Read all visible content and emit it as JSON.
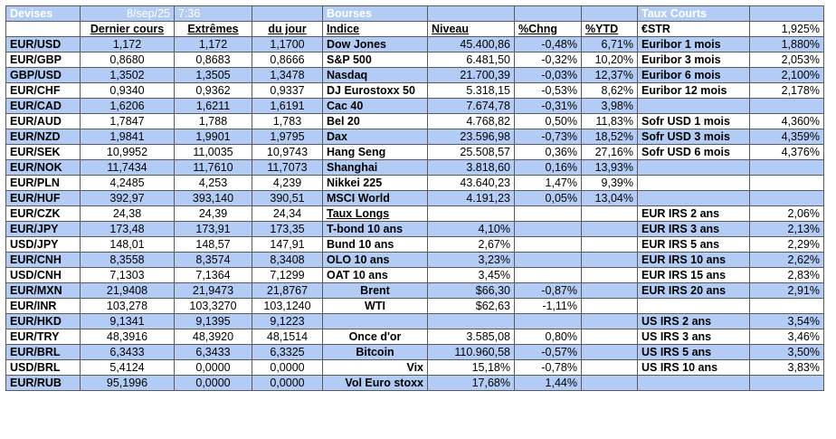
{
  "header": {
    "devises": "Devises",
    "date": "8/sep/25",
    "time": "7:36",
    "bourses": "Bourses",
    "taux_courts": "Taux Courts"
  },
  "columns": {
    "dernier": "Dernier cours",
    "extremes": "Extrêmes",
    "du_jour": "du jour",
    "indice": "Indice",
    "niveau": "Niveau",
    "chng": "%Chng",
    "ytd": "%YTD"
  },
  "rows": [
    {
      "pair": "EUR/USD",
      "last": "1,172",
      "high": "1,172",
      "low": "1,1700",
      "idx": "Dow Jones",
      "lvl": "45.400,86",
      "chg": "-0,48%",
      "ytd": "6,71%",
      "rname": "€STR",
      "rval": "1,925%"
    },
    {
      "pair": "EUR/GBP",
      "last": "0,8680",
      "high": "0,8683",
      "low": "0,8666",
      "idx": "S&P 500",
      "lvl": "6.481,50",
      "chg": "-0,32%",
      "ytd": "10,20%",
      "rname": "Euribor 1 mois",
      "rval": "1,880%"
    },
    {
      "pair": "GBP/USD",
      "last": "1,3502",
      "high": "1,3505",
      "low": "1,3478",
      "idx": "Nasdaq",
      "lvl": "21.700,39",
      "chg": "-0,03%",
      "ytd": "12,37%",
      "rname": "Euribor 3 mois",
      "rval": "2,053%"
    },
    {
      "pair": "EUR/CHF",
      "last": "0,9340",
      "high": "0,9362",
      "low": "0,9337",
      "idx": "DJ Eurostoxx 50",
      "lvl": "5.318,15",
      "chg": "-0,53%",
      "ytd": "8,62%",
      "rname": "Euribor 6 mois",
      "rval": "2,100%"
    },
    {
      "pair": "EUR/CAD",
      "last": "1,6206",
      "high": "1,6211",
      "low": "1,6191",
      "idx": "Cac 40",
      "lvl": "7.674,78",
      "chg": "-0,31%",
      "ytd": "3,98%",
      "rname": "Euribor 12 mois",
      "rval": "2,178%"
    },
    {
      "pair": "EUR/AUD",
      "last": "1,7847",
      "high": "1,788",
      "low": "1,783",
      "idx": "Bel 20",
      "lvl": "4.768,82",
      "chg": "0,50%",
      "ytd": "11,83%",
      "rname": "",
      "rval": ""
    },
    {
      "pair": "EUR/NZD",
      "last": "1,9841",
      "high": "1,9901",
      "low": "1,9795",
      "idx": "Dax",
      "lvl": "23.596,98",
      "chg": "-0,73%",
      "ytd": "18,52%",
      "rname": "Sofr USD 1 mois",
      "rval": "4,360%"
    },
    {
      "pair": "EUR/SEK",
      "last": "10,9952",
      "high": "11,0035",
      "low": "10,9743",
      "idx": "Hang Seng",
      "lvl": "25.508,57",
      "chg": "0,36%",
      "ytd": "27,16%",
      "rname": "Sofr USD 3 mois",
      "rval": "4,359%"
    },
    {
      "pair": "EUR/NOK",
      "last": "11,7434",
      "high": "11,7610",
      "low": "11,7073",
      "idx": "Shanghai",
      "lvl": "3.818,60",
      "chg": "0,16%",
      "ytd": "13,93%",
      "rname": "Sofr USD 6 mois",
      "rval": "4,376%"
    },
    {
      "pair": "EUR/PLN",
      "last": "4,2485",
      "high": "4,253",
      "low": "4,239",
      "idx": "Nikkei 225",
      "lvl": "43.640,23",
      "chg": "1,47%",
      "ytd": "9,39%",
      "rname": "",
      "rval": ""
    },
    {
      "pair": "EUR/HUF",
      "last": "392,97",
      "high": "393,140",
      "low": "390,51",
      "idx": "MSCI World",
      "lvl": "4.191,23",
      "chg": "0,05%",
      "ytd": "13,04%",
      "rname": "",
      "rval": ""
    },
    {
      "pair": "EUR/CZK",
      "last": "24,38",
      "high": "24,39",
      "low": "24,34",
      "idx": "Taux Longs",
      "lvl": "",
      "chg": "",
      "ytd": "",
      "rname": "",
      "rval": ""
    },
    {
      "pair": "EUR/JPY",
      "last": "173,48",
      "high": "173,91",
      "low": "173,35",
      "idx": "T-bond 10 ans",
      "lvl": "4,10%",
      "chg": "",
      "ytd": "",
      "rname": "EUR IRS 2 ans",
      "rval": "2,06%"
    },
    {
      "pair": "USD/JPY",
      "last": "148,01",
      "high": "148,57",
      "low": "147,91",
      "idx": "Bund 10 ans",
      "lvl": "2,67%",
      "chg": "",
      "ytd": "",
      "rname": "EUR IRS 3 ans",
      "rval": "2,13%"
    },
    {
      "pair": "EUR/CNH",
      "last": "8,3558",
      "high": "8,3574",
      "low": "8,3408",
      "idx": "OLO 10 ans",
      "lvl": "3,23%",
      "chg": "",
      "ytd": "",
      "rname": "EUR IRS 5 ans",
      "rval": "2,29%"
    },
    {
      "pair": "USD/CNH",
      "last": "7,1303",
      "high": "7,1364",
      "low": "7,1299",
      "idx": "OAT 10 ans",
      "lvl": "3,45%",
      "chg": "",
      "ytd": "",
      "rname": "EUR IRS 10 ans",
      "rval": "2,62%"
    },
    {
      "pair": "EUR/MXN",
      "last": "21,9408",
      "high": "21,9473",
      "low": "21,8767",
      "idx": "Brent",
      "lvl": "$66,30",
      "chg": "-0,87%",
      "ytd": "",
      "rname": "EUR IRS 15 ans",
      "rval": "2,83%"
    },
    {
      "pair": "EUR/INR",
      "last": "103,278",
      "high": "103,3270",
      "low": "103,1240",
      "idx": "WTI",
      "lvl": "$62,63",
      "chg": "-1,11%",
      "ytd": "",
      "rname": "EUR IRS 20 ans",
      "rval": "2,91%"
    },
    {
      "pair": "EUR/HKD",
      "last": "9,1341",
      "high": "9,1395",
      "low": "9,1223",
      "idx": "",
      "lvl": "",
      "chg": "",
      "ytd": "",
      "rname": "",
      "rval": ""
    },
    {
      "pair": "EUR/TRY",
      "last": "48,3916",
      "high": "48,3920",
      "low": "48,1514",
      "idx": "Once d'or",
      "lvl": "3.585,08",
      "chg": "0,80%",
      "ytd": "",
      "rname": "US IRS 2 ans",
      "rval": "3,54%"
    },
    {
      "pair": "EUR/BRL",
      "last": "6,3433",
      "high": "6,3433",
      "low": "6,3325",
      "idx": "Bitcoin",
      "lvl": "110.960,58",
      "chg": "-0,57%",
      "ytd": "",
      "rname": "US IRS 3 ans",
      "rval": "3,46%"
    },
    {
      "pair": "USD/BRL",
      "last": "5,4124",
      "high": "0,0000",
      "low": "0,0000",
      "idx": "Vix",
      "lvl": "15,18%",
      "chg": "-0,78%",
      "ytd": "",
      "rname": "US IRS 5 ans",
      "rval": "3,50%"
    },
    {
      "pair": "EUR/RUB",
      "last": "95,1996",
      "high": "0,0000",
      "low": "0,0000",
      "idx": "Vol Euro stoxx",
      "lvl": "17,68%",
      "chg": "1,44%",
      "ytd": "",
      "rname": "US IRS 10 ans",
      "rval": "3,83%"
    }
  ],
  "colors": {
    "row_blue": "#b3ccf5",
    "row_white": "#ffffff",
    "border": "#5a5a5a",
    "header_text": "#ffffff"
  }
}
